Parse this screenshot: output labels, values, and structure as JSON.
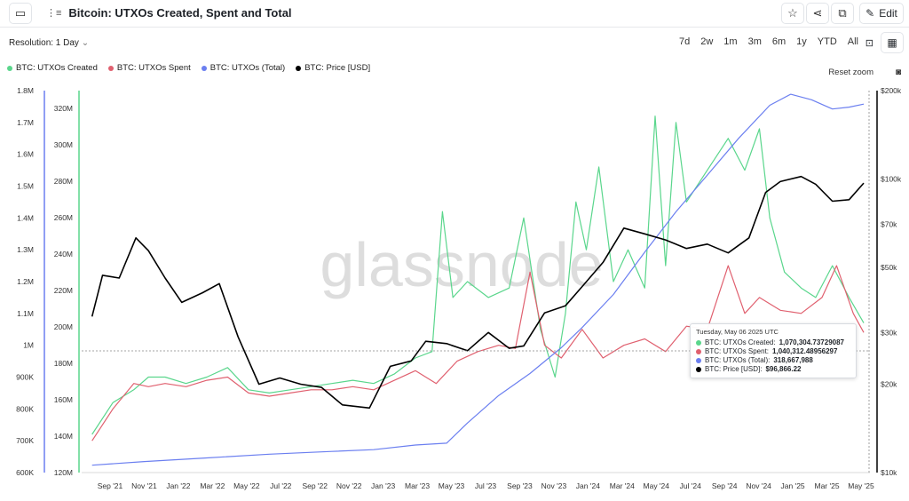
{
  "app": {
    "title": "Bitcoin: UTXOs Created, Spent and Total",
    "edit_label": "Edit",
    "resolution_label": "Resolution: 1 Day",
    "ranges": [
      "7d",
      "2w",
      "1m",
      "3m",
      "6m",
      "1y",
      "YTD",
      "All"
    ],
    "reset_zoom": "Reset zoom",
    "watermark": "glassnode"
  },
  "legend": [
    {
      "label": "BTC: UTXOs Created",
      "color": "#5ad68c"
    },
    {
      "label": "BTC: UTXOs Spent",
      "color": "#e0606f"
    },
    {
      "label": "BTC: UTXOs (Total)",
      "color": "#6b7ff0"
    },
    {
      "label": "BTC: Price [USD]",
      "color": "#000000"
    }
  ],
  "tooltip": {
    "date": "Tuesday, May 06 2025 UTC",
    "rows": [
      {
        "label": "BTC: UTXOs Created:",
        "value": "1,070,304.73729087",
        "color": "#5ad68c"
      },
      {
        "label": "BTC: UTXOs Spent:",
        "value": "1,040,312.48956297",
        "color": "#e0606f"
      },
      {
        "label": "BTC: UTXOs (Total):",
        "value": "318,667,988",
        "color": "#6b7ff0"
      },
      {
        "label": "BTC: Price [USD]:",
        "value": "$96,866.22",
        "color": "#000000"
      }
    ]
  },
  "chart_data": {
    "type": "line",
    "x_tick_labels": [
      "Sep '21",
      "Nov '21",
      "Jan '22",
      "Mar '22",
      "May '22",
      "Jul '22",
      "Sep '22",
      "Nov '22",
      "Jan '23",
      "Mar '23",
      "May '23",
      "Jul '23",
      "Sep '23",
      "Nov '23",
      "Jan '24",
      "Mar '24",
      "May '24",
      "Jul '24",
      "Sep '24",
      "Nov '24",
      "Jan '25",
      "Mar '25",
      "May '25"
    ],
    "axis_left_flow": {
      "ticks": [
        "1.8M",
        "1.7M",
        "1.6M",
        "1.5M",
        "1.4M",
        "1.3M",
        "1.2M",
        "1.1M",
        "1M",
        "900K",
        "800K",
        "700K",
        "600K"
      ],
      "range": [
        600000,
        1800000
      ]
    },
    "axis_left_total": {
      "ticks": [
        "320M",
        "300M",
        "280M",
        "260M",
        "240M",
        "220M",
        "200M",
        "180M",
        "160M",
        "140M",
        "120M"
      ],
      "range": [
        118000000,
        326000000
      ]
    },
    "axis_right_price": {
      "ticks": [
        "$200k",
        "$100k",
        "$70k",
        "$50k",
        "$30k",
        "$20k",
        "$10k"
      ],
      "scale": "log",
      "range": [
        10000,
        200000
      ]
    },
    "series": [
      {
        "name": "BTC: UTXOs Created",
        "axis": "flow",
        "color": "#5ad68c",
        "points": [
          [
            2021.65,
            720000
          ],
          [
            2021.75,
            820000
          ],
          [
            2021.85,
            860000
          ],
          [
            2021.92,
            900000
          ],
          [
            2022.0,
            900000
          ],
          [
            2022.1,
            880000
          ],
          [
            2022.2,
            900000
          ],
          [
            2022.3,
            930000
          ],
          [
            2022.4,
            860000
          ],
          [
            2022.5,
            850000
          ],
          [
            2022.6,
            860000
          ],
          [
            2022.7,
            870000
          ],
          [
            2022.8,
            880000
          ],
          [
            2022.9,
            890000
          ],
          [
            2023.0,
            880000
          ],
          [
            2023.1,
            910000
          ],
          [
            2023.2,
            960000
          ],
          [
            2023.28,
            980000
          ],
          [
            2023.33,
            1420000
          ],
          [
            2023.38,
            1150000
          ],
          [
            2023.45,
            1200000
          ],
          [
            2023.55,
            1150000
          ],
          [
            2023.65,
            1180000
          ],
          [
            2023.72,
            1400000
          ],
          [
            2023.8,
            1050000
          ],
          [
            2023.87,
            900000
          ],
          [
            2023.92,
            1100000
          ],
          [
            2023.97,
            1450000
          ],
          [
            2024.02,
            1300000
          ],
          [
            2024.08,
            1560000
          ],
          [
            2024.15,
            1200000
          ],
          [
            2024.22,
            1300000
          ],
          [
            2024.3,
            1180000
          ],
          [
            2024.35,
            1720000
          ],
          [
            2024.4,
            1250000
          ],
          [
            2024.45,
            1700000
          ],
          [
            2024.5,
            1450000
          ],
          [
            2024.6,
            1550000
          ],
          [
            2024.7,
            1650000
          ],
          [
            2024.78,
            1550000
          ],
          [
            2024.85,
            1680000
          ],
          [
            2024.9,
            1400000
          ],
          [
            2024.97,
            1230000
          ],
          [
            2025.05,
            1180000
          ],
          [
            2025.12,
            1150000
          ],
          [
            2025.2,
            1250000
          ],
          [
            2025.28,
            1150000
          ],
          [
            2025.35,
            1070000
          ]
        ]
      },
      {
        "name": "BTC: UTXOs Spent",
        "axis": "flow",
        "color": "#e0606f",
        "points": [
          [
            2021.65,
            700000
          ],
          [
            2021.75,
            800000
          ],
          [
            2021.85,
            880000
          ],
          [
            2021.92,
            870000
          ],
          [
            2022.0,
            880000
          ],
          [
            2022.1,
            870000
          ],
          [
            2022.2,
            890000
          ],
          [
            2022.3,
            900000
          ],
          [
            2022.4,
            850000
          ],
          [
            2022.5,
            840000
          ],
          [
            2022.6,
            850000
          ],
          [
            2022.7,
            860000
          ],
          [
            2022.8,
            860000
          ],
          [
            2022.9,
            870000
          ],
          [
            2023.0,
            860000
          ],
          [
            2023.1,
            890000
          ],
          [
            2023.2,
            920000
          ],
          [
            2023.3,
            880000
          ],
          [
            2023.4,
            950000
          ],
          [
            2023.5,
            980000
          ],
          [
            2023.6,
            1000000
          ],
          [
            2023.68,
            990000
          ],
          [
            2023.75,
            1230000
          ],
          [
            2023.82,
            1000000
          ],
          [
            2023.9,
            960000
          ],
          [
            2024.0,
            1050000
          ],
          [
            2024.1,
            960000
          ],
          [
            2024.2,
            1000000
          ],
          [
            2024.3,
            1020000
          ],
          [
            2024.4,
            980000
          ],
          [
            2024.5,
            1060000
          ],
          [
            2024.6,
            1050000
          ],
          [
            2024.7,
            1250000
          ],
          [
            2024.78,
            1100000
          ],
          [
            2024.85,
            1150000
          ],
          [
            2024.95,
            1110000
          ],
          [
            2025.05,
            1100000
          ],
          [
            2025.15,
            1150000
          ],
          [
            2025.22,
            1250000
          ],
          [
            2025.3,
            1100000
          ],
          [
            2025.35,
            1040000
          ]
        ]
      },
      {
        "name": "BTC: UTXOs (Total)",
        "axis": "total",
        "color": "#6b7ff0",
        "points": [
          [
            2021.65,
            122000000
          ],
          [
            2021.9,
            124000000
          ],
          [
            2022.2,
            126000000
          ],
          [
            2022.5,
            128000000
          ],
          [
            2022.8,
            129500000
          ],
          [
            2023.0,
            130500000
          ],
          [
            2023.2,
            133000000
          ],
          [
            2023.35,
            134000000
          ],
          [
            2023.45,
            145000000
          ],
          [
            2023.6,
            160000000
          ],
          [
            2023.75,
            172000000
          ],
          [
            2023.9,
            186000000
          ],
          [
            2024.0,
            197000000
          ],
          [
            2024.15,
            215000000
          ],
          [
            2024.3,
            238000000
          ],
          [
            2024.45,
            260000000
          ],
          [
            2024.6,
            280000000
          ],
          [
            2024.75,
            300000000
          ],
          [
            2024.9,
            318000000
          ],
          [
            2025.0,
            324000000
          ],
          [
            2025.1,
            321000000
          ],
          [
            2025.2,
            316000000
          ],
          [
            2025.28,
            317000000
          ],
          [
            2025.35,
            318667988
          ]
        ]
      },
      {
        "name": "BTC: Price [USD]",
        "axis": "price",
        "color": "#000000",
        "points": [
          [
            2021.65,
            34000
          ],
          [
            2021.7,
            47000
          ],
          [
            2021.78,
            46000
          ],
          [
            2021.86,
            63000
          ],
          [
            2021.92,
            57000
          ],
          [
            2022.0,
            46000
          ],
          [
            2022.08,
            38000
          ],
          [
            2022.18,
            41000
          ],
          [
            2022.26,
            44000
          ],
          [
            2022.35,
            29000
          ],
          [
            2022.45,
            20000
          ],
          [
            2022.55,
            21000
          ],
          [
            2022.65,
            20000
          ],
          [
            2022.75,
            19500
          ],
          [
            2022.85,
            17000
          ],
          [
            2022.98,
            16600
          ],
          [
            2023.08,
            23000
          ],
          [
            2023.18,
            24000
          ],
          [
            2023.25,
            28000
          ],
          [
            2023.35,
            27500
          ],
          [
            2023.45,
            26000
          ],
          [
            2023.55,
            30000
          ],
          [
            2023.65,
            26500
          ],
          [
            2023.72,
            27000
          ],
          [
            2023.82,
            35000
          ],
          [
            2023.92,
            37000
          ],
          [
            2024.0,
            43000
          ],
          [
            2024.1,
            52000
          ],
          [
            2024.2,
            68000
          ],
          [
            2024.3,
            65000
          ],
          [
            2024.4,
            62000
          ],
          [
            2024.5,
            58000
          ],
          [
            2024.6,
            60000
          ],
          [
            2024.7,
            56000
          ],
          [
            2024.8,
            63000
          ],
          [
            2024.88,
            90000
          ],
          [
            2024.95,
            98000
          ],
          [
            2025.05,
            102000
          ],
          [
            2025.12,
            96000
          ],
          [
            2025.2,
            84000
          ],
          [
            2025.28,
            85000
          ],
          [
            2025.35,
            96866
          ]
        ]
      }
    ]
  }
}
